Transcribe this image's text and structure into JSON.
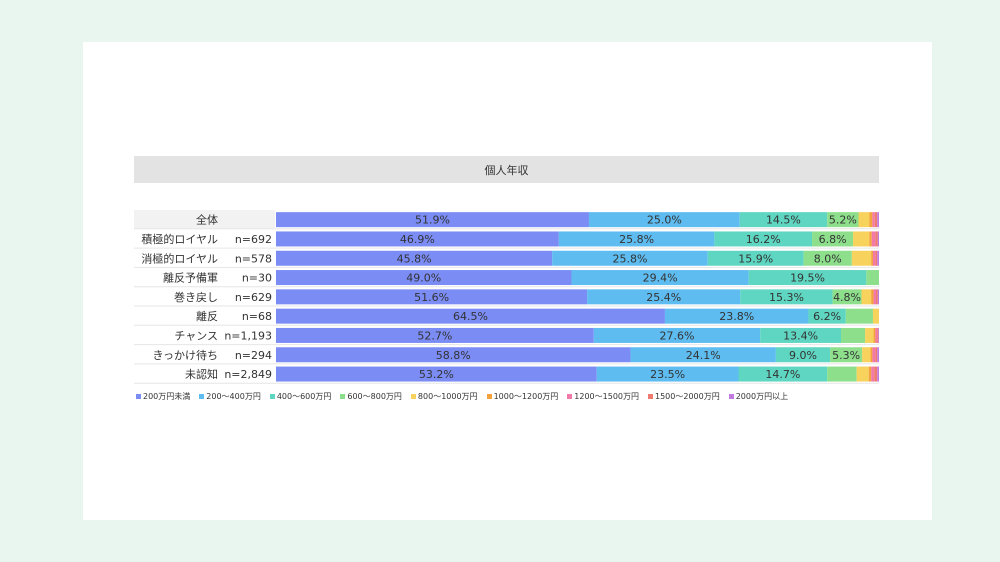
{
  "chart_data": {
    "type": "bar",
    "orientation": "horizontal-stacked-100",
    "title": "個人年収",
    "categories": [
      "全体",
      "積極的ロイヤル",
      "消極的ロイヤル",
      "離反予備軍",
      "巻き戻し",
      "離反",
      "チャンス",
      "きっかけ待ち",
      "未認知"
    ],
    "sample_sizes": [
      "",
      "n=692",
      "n=578",
      "n=30",
      "n=629",
      "n=68",
      "n=1,193",
      "n=294",
      "n=2,849"
    ],
    "series": [
      {
        "name": "200万円未満",
        "color": "#7b8cf5",
        "values": [
          51.9,
          46.9,
          45.8,
          49.0,
          51.6,
          64.5,
          52.7,
          58.8,
          53.2
        ],
        "labels": [
          "51.9%",
          "46.9%",
          "45.8%",
          "49.0%",
          "51.6%",
          "64.5%",
          "52.7%",
          "58.8%",
          "53.2%"
        ]
      },
      {
        "name": "200～400万円",
        "color": "#5ebcf0",
        "values": [
          25.0,
          25.8,
          25.8,
          29.4,
          25.4,
          23.8,
          27.6,
          24.1,
          23.5
        ],
        "labels": [
          "25.0%",
          "25.8%",
          "25.8%",
          "29.4%",
          "25.4%",
          "23.8%",
          "27.6%",
          "24.1%",
          "23.5%"
        ]
      },
      {
        "name": "400～600万円",
        "color": "#5fd6c1",
        "values": [
          14.5,
          16.2,
          15.9,
          19.5,
          15.3,
          6.2,
          13.4,
          9.0,
          14.7
        ],
        "labels": [
          "14.5%",
          "16.2%",
          "15.9%",
          "19.5%",
          "15.3%",
          "6.2%",
          "13.4%",
          "9.0%",
          "14.7%"
        ]
      },
      {
        "name": "600～800万円",
        "color": "#8ddf8c",
        "values": [
          5.2,
          6.8,
          8.0,
          2.1,
          4.8,
          4.5,
          4.0,
          5.3,
          4.9
        ],
        "labels": [
          "5.2%",
          "6.8%",
          "8.0%",
          "",
          "4.8%",
          "",
          "",
          "5.3%",
          ""
        ]
      },
      {
        "name": "800～1000万円",
        "color": "#f7d25c",
        "values": [
          1.8,
          2.7,
          3.2,
          0,
          1.6,
          1.0,
          1.4,
          1.4,
          2.0
        ],
        "labels": [
          "",
          "",
          "",
          "",
          "",
          "",
          "",
          "",
          ""
        ]
      },
      {
        "name": "1000～1200万円",
        "color": "#f4a23b",
        "values": [
          0.5,
          0.4,
          0.3,
          0,
          0.4,
          0,
          0.3,
          0.3,
          0.4
        ],
        "labels": [
          "",
          "",
          "",
          "",
          "",
          "",
          "",
          "",
          ""
        ]
      },
      {
        "name": "1200～1500万円",
        "color": "#f27aa8",
        "values": [
          0.4,
          0.6,
          0.4,
          0,
          0.4,
          0,
          0.3,
          0.5,
          0.5
        ],
        "labels": [
          "",
          "",
          "",
          "",
          "",
          "",
          "",
          "",
          ""
        ]
      },
      {
        "name": "1500～2000万円",
        "color": "#ef7a70",
        "values": [
          0.4,
          0.4,
          0.3,
          0,
          0.3,
          0,
          0.2,
          0.3,
          0.5
        ],
        "labels": [
          "",
          "",
          "",
          "",
          "",
          "",
          "",
          "",
          ""
        ]
      },
      {
        "name": "2000万円以上",
        "color": "#c07ae0",
        "values": [
          0.3,
          0.2,
          0.3,
          0,
          0.2,
          0,
          0.1,
          0.3,
          0.3
        ],
        "labels": [
          "",
          "",
          "",
          "",
          "",
          "",
          "",
          "",
          ""
        ]
      }
    ],
    "xlim": [
      0,
      100
    ],
    "legend_placement": "bottom-left",
    "grid": false
  }
}
